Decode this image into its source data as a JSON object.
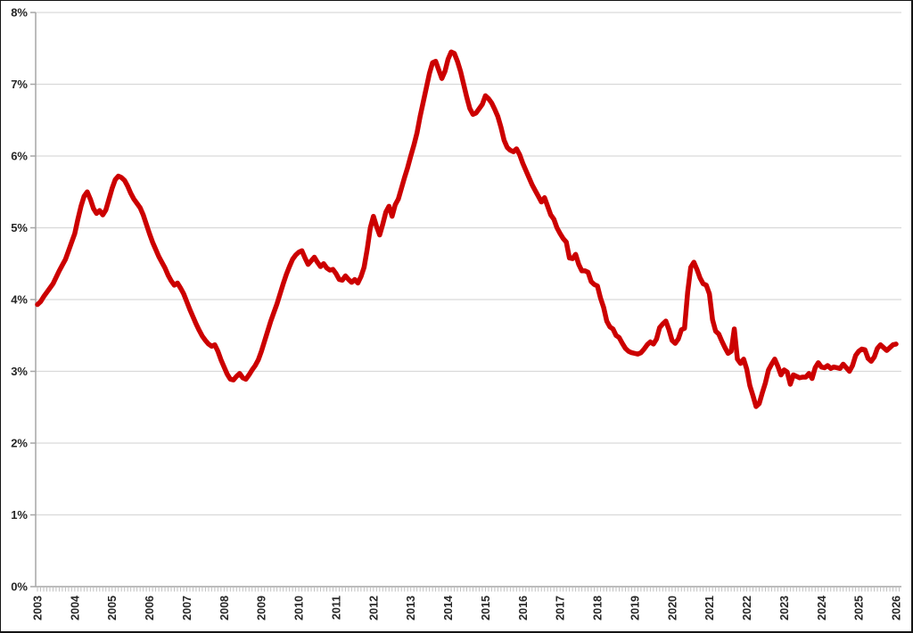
{
  "figure": {
    "background_color": "#FFFFFF",
    "border_color": "#141414",
    "gridline_color": "#D9D9D9",
    "axis_color": "#A6A6A6",
    "tick_color": "#BFBFBF",
    "label_color": "#262626"
  },
  "chart_data": {
    "type": "line",
    "title": "",
    "legend": "none",
    "grid": "horizontal",
    "y_axis": {
      "min": 0,
      "max": 8,
      "unit": "%",
      "tick_labels": [
        "0%",
        "1%",
        "2%",
        "3%",
        "4%",
        "5%",
        "6%",
        "7%",
        "8%"
      ]
    },
    "x_axis": {
      "start_year": 2003,
      "end_year": 2026,
      "minor_tick_interval": "month",
      "tick_labels": [
        "2003",
        "2004",
        "2005",
        "2006",
        "2007",
        "2008",
        "2009",
        "2010",
        "2011",
        "2012",
        "2013",
        "2014",
        "2015",
        "2016",
        "2017",
        "2018",
        "2019",
        "2020",
        "2021",
        "2022",
        "2023",
        "2024",
        "2025",
        "2026"
      ]
    },
    "series": [
      {
        "name": "series_1",
        "color": "#CC0000",
        "frequency": "monthly",
        "start": "2003-01",
        "end": "2026-01",
        "values": [
          3.93,
          3.97,
          4.04,
          4.1,
          4.16,
          4.22,
          4.31,
          4.4,
          4.48,
          4.56,
          4.68,
          4.8,
          4.92,
          5.12,
          5.3,
          5.44,
          5.5,
          5.4,
          5.27,
          5.2,
          5.24,
          5.18,
          5.25,
          5.4,
          5.55,
          5.67,
          5.72,
          5.7,
          5.66,
          5.58,
          5.48,
          5.4,
          5.34,
          5.28,
          5.18,
          5.05,
          4.92,
          4.8,
          4.7,
          4.6,
          4.52,
          4.44,
          4.34,
          4.26,
          4.2,
          4.23,
          4.16,
          4.08,
          3.97,
          3.86,
          3.76,
          3.66,
          3.57,
          3.49,
          3.43,
          3.38,
          3.35,
          3.37,
          3.28,
          3.16,
          3.06,
          2.96,
          2.89,
          2.88,
          2.93,
          2.97,
          2.91,
          2.89,
          2.95,
          3.02,
          3.08,
          3.16,
          3.28,
          3.42,
          3.56,
          3.7,
          3.82,
          3.94,
          4.08,
          4.22,
          4.35,
          4.46,
          4.56,
          4.62,
          4.66,
          4.68,
          4.58,
          4.49,
          4.54,
          4.59,
          4.52,
          4.46,
          4.5,
          4.44,
          4.41,
          4.42,
          4.36,
          4.28,
          4.27,
          4.33,
          4.28,
          4.24,
          4.28,
          4.23,
          4.32,
          4.45,
          4.7,
          5.0,
          5.16,
          5.02,
          4.9,
          5.05,
          5.22,
          5.3,
          5.16,
          5.32,
          5.4,
          5.55,
          5.7,
          5.84,
          6.0,
          6.15,
          6.32,
          6.55,
          6.75,
          6.95,
          7.15,
          7.3,
          7.32,
          7.2,
          7.08,
          7.18,
          7.35,
          7.45,
          7.43,
          7.32,
          7.18,
          7.0,
          6.82,
          6.66,
          6.58,
          6.6,
          6.66,
          6.72,
          6.84,
          6.8,
          6.74,
          6.65,
          6.55,
          6.4,
          6.22,
          6.12,
          6.08,
          6.06,
          6.1,
          6.02,
          5.9,
          5.8,
          5.7,
          5.6,
          5.52,
          5.44,
          5.36,
          5.42,
          5.3,
          5.18,
          5.12,
          5.0,
          4.92,
          4.85,
          4.8,
          4.58,
          4.57,
          4.63,
          4.49,
          4.4,
          4.4,
          4.38,
          4.25,
          4.21,
          4.19,
          4.02,
          3.89,
          3.7,
          3.62,
          3.59,
          3.5,
          3.47,
          3.39,
          3.32,
          3.28,
          3.26,
          3.25,
          3.24,
          3.26,
          3.31,
          3.37,
          3.41,
          3.38,
          3.45,
          3.61,
          3.66,
          3.7,
          3.58,
          3.43,
          3.39,
          3.45,
          3.58,
          3.6,
          4.1,
          4.45,
          4.52,
          4.42,
          4.3,
          4.22,
          4.2,
          4.08,
          3.72,
          3.56,
          3.52,
          3.42,
          3.33,
          3.25,
          3.28,
          3.59,
          3.17,
          3.11,
          3.17,
          3.03,
          2.8,
          2.66,
          2.51,
          2.55,
          2.7,
          2.84,
          3.02,
          3.1,
          3.17,
          3.07,
          2.95,
          3.02,
          2.99,
          2.82,
          2.95,
          2.93,
          2.91,
          2.92,
          2.92,
          2.97,
          2.9,
          3.05,
          3.12,
          3.06,
          3.05,
          3.08,
          3.04,
          3.06,
          3.05,
          3.04,
          3.1,
          3.05,
          3.0,
          3.08,
          3.22,
          3.28,
          3.31,
          3.3,
          3.18,
          3.14,
          3.2,
          3.32,
          3.37,
          3.33,
          3.29,
          3.33,
          3.37,
          3.38
        ]
      }
    ]
  }
}
